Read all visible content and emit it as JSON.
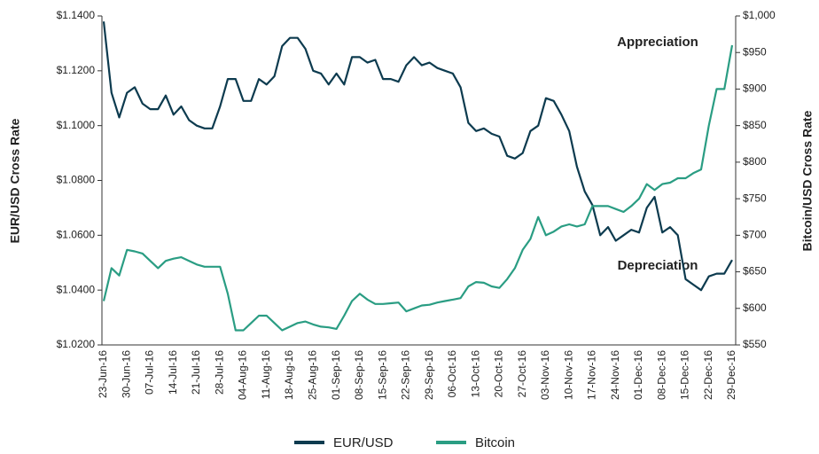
{
  "chart_data": {
    "type": "line",
    "x_tick_interval_note_free": null,
    "categories": [
      "23-Jun-16",
      null,
      null,
      "30-Jun-16",
      null,
      null,
      "07-Jul-16",
      null,
      null,
      "14-Jul-16",
      null,
      null,
      "21-Jul-16",
      null,
      null,
      "28-Jul-16",
      null,
      null,
      "04-Aug-16",
      null,
      null,
      "11-Aug-16",
      null,
      null,
      "18-Aug-16",
      null,
      null,
      "25-Aug-16",
      null,
      null,
      "01-Sep-16",
      null,
      null,
      "08-Sep-16",
      null,
      null,
      "15-Sep-16",
      null,
      null,
      "22-Sep-16",
      null,
      null,
      "29-Sep-16",
      null,
      null,
      "06-Oct-16",
      null,
      null,
      "13-Oct-16",
      null,
      null,
      "20-Oct-16",
      null,
      null,
      "27-Oct-16",
      null,
      null,
      "03-Nov-16",
      null,
      null,
      "10-Nov-16",
      null,
      null,
      "17-Nov-16",
      null,
      null,
      "24-Nov-16",
      null,
      null,
      "01-Dec-16",
      null,
      null,
      "08-Dec-16",
      null,
      null,
      "15-Dec-16",
      null,
      null,
      "22-Dec-16",
      null,
      null,
      "29-Dec-16"
    ],
    "series": [
      {
        "name": "EUR/USD",
        "color": "#0d3b4f",
        "values": [
          1.138,
          1.112,
          1.103,
          1.112,
          1.114,
          1.108,
          1.106,
          1.106,
          1.111,
          1.104,
          1.107,
          1.102,
          1.1,
          1.099,
          1.099,
          1.107,
          1.117,
          1.117,
          1.109,
          1.109,
          1.117,
          1.115,
          1.118,
          1.129,
          1.132,
          1.132,
          1.128,
          1.12,
          1.119,
          1.115,
          1.119,
          1.115,
          1.125,
          1.125,
          1.123,
          1.124,
          1.117,
          1.117,
          1.116,
          1.122,
          1.125,
          1.122,
          1.123,
          1.121,
          1.12,
          1.119,
          1.114,
          1.101,
          1.098,
          1.099,
          1.097,
          1.096,
          1.089,
          1.088,
          1.09,
          1.098,
          1.1,
          1.11,
          1.109,
          1.104,
          1.098,
          1.085,
          1.076,
          1.071,
          1.06,
          1.063,
          1.058,
          1.06,
          1.062,
          1.061,
          1.07,
          1.074,
          1.061,
          1.063,
          1.06,
          1.044,
          1.042,
          1.04,
          1.045,
          1.046,
          1.046,
          1.051
        ]
      },
      {
        "name": "Bitcoin",
        "color": "#2a9d83",
        "axis": "y2",
        "values": [
          610,
          655,
          645,
          680,
          678,
          675,
          665,
          655,
          665,
          668,
          670,
          665,
          660,
          657,
          657,
          657,
          620,
          570,
          570,
          580,
          590,
          590,
          580,
          570,
          575,
          580,
          582,
          578,
          575,
          574,
          572,
          590,
          610,
          620,
          612,
          606,
          606,
          607,
          608,
          596,
          600,
          604,
          605,
          608,
          610,
          612,
          614,
          630,
          636,
          635,
          630,
          628,
          640,
          655,
          680,
          695,
          725,
          700,
          705,
          712,
          715,
          712,
          715,
          740,
          740,
          740,
          736,
          732,
          740,
          750,
          770,
          762,
          770,
          772,
          778,
          778,
          785,
          790,
          850,
          900,
          900,
          960
        ]
      }
    ],
    "ylabel": "EUR/USD Cross Rate",
    "y2label": "Bitcoin/USD Cross Rate",
    "ylim": [
      1.02,
      1.14
    ],
    "yticks": [
      {
        "value": 1.02,
        "label": "$1.0200"
      },
      {
        "value": 1.04,
        "label": "$1.0400"
      },
      {
        "value": 1.06,
        "label": "$1.0600"
      },
      {
        "value": 1.08,
        "label": "$1.0800"
      },
      {
        "value": 1.1,
        "label": "$1.1000"
      },
      {
        "value": 1.12,
        "label": "$1.1200"
      },
      {
        "value": 1.14,
        "label": "$1.1400"
      }
    ],
    "y2lim": [
      550,
      1000
    ],
    "y2ticks": [
      {
        "value": 550,
        "label": "$550"
      },
      {
        "value": 600,
        "label": "$600"
      },
      {
        "value": 650,
        "label": "$650"
      },
      {
        "value": 700,
        "label": "$700"
      },
      {
        "value": 750,
        "label": "$750"
      },
      {
        "value": 800,
        "label": "$800"
      },
      {
        "value": 850,
        "label": "$850"
      },
      {
        "value": 900,
        "label": "$900"
      },
      {
        "value": 950,
        "label": "$950"
      },
      {
        "value": 1000,
        "label": "$1,000"
      }
    ],
    "annotations": [
      "Appreciation",
      "Depreciation"
    ],
    "legend": "bottom"
  }
}
